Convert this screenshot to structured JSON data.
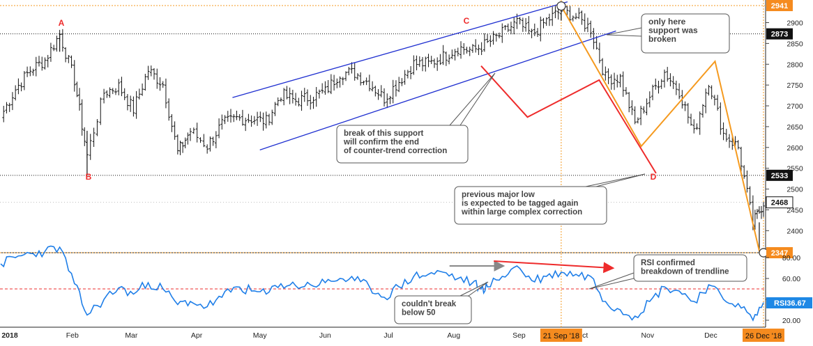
{
  "chart_data": [
    {
      "type": "ohlc",
      "name": "price",
      "ylim": [
        2340,
        2950
      ],
      "y_ticks": [
        2400,
        2450,
        2500,
        2550,
        2600,
        2650,
        2700,
        2750,
        2800,
        2850,
        2900
      ],
      "price_labels": [
        {
          "value": 2941,
          "label": "2941",
          "style": "orange"
        },
        {
          "value": 2873,
          "label": "2873",
          "style": "black"
        },
        {
          "value": 2533,
          "label": "2533",
          "style": "black"
        },
        {
          "value": 2468,
          "label": "2468",
          "style": "white"
        },
        {
          "value": 2347,
          "label": "2347",
          "style": "orange"
        }
      ],
      "points": [
        {
          "label": "A",
          "date": "2018-01-26",
          "value": 2873
        },
        {
          "label": "B",
          "date": "2018-02-08",
          "value": 2533
        },
        {
          "label": "C",
          "date": "2018-08-07",
          "value": 2873
        },
        {
          "label": "D",
          "date": "2018-11-05",
          "value": 2533
        }
      ],
      "close_series": [
        {
          "date": "2017-12-29",
          "close": 2674
        },
        {
          "date": "2018-01-05",
          "close": 2740
        },
        {
          "date": "2018-01-12",
          "close": 2786
        },
        {
          "date": "2018-01-19",
          "close": 2810
        },
        {
          "date": "2018-01-26",
          "close": 2872
        },
        {
          "date": "2018-02-02",
          "close": 2762
        },
        {
          "date": "2018-02-08",
          "close": 2581
        },
        {
          "date": "2018-02-16",
          "close": 2732
        },
        {
          "date": "2018-02-23",
          "close": 2747
        },
        {
          "date": "2018-03-02",
          "close": 2691
        },
        {
          "date": "2018-03-09",
          "close": 2786
        },
        {
          "date": "2018-03-16",
          "close": 2752
        },
        {
          "date": "2018-03-23",
          "close": 2588
        },
        {
          "date": "2018-03-29",
          "close": 2640
        },
        {
          "date": "2018-04-06",
          "close": 2604
        },
        {
          "date": "2018-04-13",
          "close": 2656
        },
        {
          "date": "2018-04-20",
          "close": 2670
        },
        {
          "date": "2018-04-27",
          "close": 2669
        },
        {
          "date": "2018-05-04",
          "close": 2663
        },
        {
          "date": "2018-05-11",
          "close": 2727
        },
        {
          "date": "2018-05-18",
          "close": 2712
        },
        {
          "date": "2018-05-25",
          "close": 2721
        },
        {
          "date": "2018-06-01",
          "close": 2734
        },
        {
          "date": "2018-06-08",
          "close": 2779
        },
        {
          "date": "2018-06-15",
          "close": 2779
        },
        {
          "date": "2018-06-22",
          "close": 2754
        },
        {
          "date": "2018-06-29",
          "close": 2718
        },
        {
          "date": "2018-07-06",
          "close": 2759
        },
        {
          "date": "2018-07-13",
          "close": 2801
        },
        {
          "date": "2018-07-20",
          "close": 2801
        },
        {
          "date": "2018-07-27",
          "close": 2818
        },
        {
          "date": "2018-08-03",
          "close": 2840
        },
        {
          "date": "2018-08-10",
          "close": 2833
        },
        {
          "date": "2018-08-17",
          "close": 2850
        },
        {
          "date": "2018-08-24",
          "close": 2874
        },
        {
          "date": "2018-08-31",
          "close": 2901
        },
        {
          "date": "2018-09-07",
          "close": 2871
        },
        {
          "date": "2018-09-14",
          "close": 2905
        },
        {
          "date": "2018-09-21",
          "close": 2929
        },
        {
          "date": "2018-09-28",
          "close": 2914
        },
        {
          "date": "2018-10-05",
          "close": 2885
        },
        {
          "date": "2018-10-12",
          "close": 2767
        },
        {
          "date": "2018-10-19",
          "close": 2767
        },
        {
          "date": "2018-10-26",
          "close": 2658
        },
        {
          "date": "2018-11-02",
          "close": 2723
        },
        {
          "date": "2018-11-09",
          "close": 2781
        },
        {
          "date": "2018-11-16",
          "close": 2736
        },
        {
          "date": "2018-11-23",
          "close": 2633
        },
        {
          "date": "2018-11-30",
          "close": 2760
        },
        {
          "date": "2018-12-07",
          "close": 2633
        },
        {
          "date": "2018-12-14",
          "close": 2600
        },
        {
          "date": "2018-12-21",
          "close": 2417
        },
        {
          "date": "2018-12-26",
          "close": 2468
        }
      ],
      "channel": {
        "upper": [
          {
            "date": "2018-04-18",
            "value": 2720
          },
          {
            "date": "2018-09-24",
            "value": 2950
          }
        ],
        "lower": [
          {
            "date": "2018-05-01",
            "value": 2594
          },
          {
            "date": "2018-10-17",
            "value": 2880
          }
        ]
      },
      "orange_path": [
        {
          "date": "2018-09-21",
          "value": 2940
        },
        {
          "date": "2018-10-29",
          "value": 2603
        },
        {
          "date": "2018-12-03",
          "value": 2807
        },
        {
          "date": "2018-12-24",
          "value": 2351
        }
      ],
      "red_path": [
        {
          "date": "2018-08-14",
          "value": 2796
        },
        {
          "date": "2018-09-05",
          "value": 2673
        },
        {
          "date": "2018-10-09",
          "value": 2762
        },
        {
          "date": "2018-11-05",
          "value": 2538
        }
      ],
      "circles": [
        {
          "date": "2018-09-21",
          "value": 2940
        },
        {
          "date": "2018-12-26",
          "value": 2347
        }
      ],
      "annotations": [
        {
          "id": "only-here",
          "text": [
            "only here",
            "support was",
            "broken"
          ]
        },
        {
          "id": "break-support",
          "text": [
            "break of this support",
            "will confirm the end",
            "of counter-trend correction"
          ]
        },
        {
          "id": "previous-low",
          "text": [
            "previous major low",
            "is expected to be tagged again",
            "within large complex correction"
          ]
        }
      ]
    },
    {
      "type": "line",
      "name": "RSI",
      "ylim": [
        12,
        92
      ],
      "y_ticks": [
        20,
        40,
        60,
        80
      ],
      "y_tick_labels": [
        "20.00",
        "40.00",
        "60.00",
        "80.00"
      ],
      "reference_line": 50,
      "badge": {
        "label": "RSI",
        "value": "36.67"
      },
      "series": [
        {
          "date": "2017-12-29",
          "value": 74
        },
        {
          "date": "2018-01-05",
          "value": 80
        },
        {
          "date": "2018-01-12",
          "value": 84
        },
        {
          "date": "2018-01-19",
          "value": 86
        },
        {
          "date": "2018-01-26",
          "value": 90
        },
        {
          "date": "2018-02-02",
          "value": 55
        },
        {
          "date": "2018-02-08",
          "value": 25
        },
        {
          "date": "2018-02-16",
          "value": 40
        },
        {
          "date": "2018-02-23",
          "value": 51
        },
        {
          "date": "2018-03-02",
          "value": 45
        },
        {
          "date": "2018-03-09",
          "value": 56
        },
        {
          "date": "2018-03-16",
          "value": 50
        },
        {
          "date": "2018-03-23",
          "value": 35
        },
        {
          "date": "2018-03-29",
          "value": 38
        },
        {
          "date": "2018-04-06",
          "value": 33
        },
        {
          "date": "2018-04-13",
          "value": 42
        },
        {
          "date": "2018-04-20",
          "value": 52
        },
        {
          "date": "2018-04-27",
          "value": 48
        },
        {
          "date": "2018-05-04",
          "value": 45
        },
        {
          "date": "2018-05-11",
          "value": 55
        },
        {
          "date": "2018-05-18",
          "value": 53
        },
        {
          "date": "2018-05-25",
          "value": 54
        },
        {
          "date": "2018-06-01",
          "value": 56
        },
        {
          "date": "2018-06-08",
          "value": 60
        },
        {
          "date": "2018-06-15",
          "value": 58
        },
        {
          "date": "2018-06-22",
          "value": 52
        },
        {
          "date": "2018-06-29",
          "value": 42
        },
        {
          "date": "2018-07-06",
          "value": 52
        },
        {
          "date": "2018-07-13",
          "value": 62
        },
        {
          "date": "2018-07-20",
          "value": 64
        },
        {
          "date": "2018-07-27",
          "value": 66
        },
        {
          "date": "2018-08-03",
          "value": 60
        },
        {
          "date": "2018-08-10",
          "value": 56
        },
        {
          "date": "2018-08-14",
          "value": 50
        },
        {
          "date": "2018-08-17",
          "value": 52
        },
        {
          "date": "2018-08-24",
          "value": 62
        },
        {
          "date": "2018-08-31",
          "value": 72
        },
        {
          "date": "2018-09-07",
          "value": 58
        },
        {
          "date": "2018-09-14",
          "value": 62
        },
        {
          "date": "2018-09-21",
          "value": 66
        },
        {
          "date": "2018-09-28",
          "value": 64
        },
        {
          "date": "2018-10-05",
          "value": 62
        },
        {
          "date": "2018-10-12",
          "value": 38
        },
        {
          "date": "2018-10-19",
          "value": 30
        },
        {
          "date": "2018-10-26",
          "value": 24
        },
        {
          "date": "2018-11-02",
          "value": 38
        },
        {
          "date": "2018-11-09",
          "value": 52
        },
        {
          "date": "2018-11-16",
          "value": 48
        },
        {
          "date": "2018-11-23",
          "value": 38
        },
        {
          "date": "2018-11-30",
          "value": 54
        },
        {
          "date": "2018-12-07",
          "value": 40
        },
        {
          "date": "2018-12-14",
          "value": 36
        },
        {
          "date": "2018-12-21",
          "value": 20
        },
        {
          "date": "2018-12-26",
          "value": 37
        }
      ],
      "arrows": [
        {
          "color": "gray",
          "from": {
            "date": "2018-07-30",
            "value": 72
          },
          "to": {
            "date": "2018-08-24",
            "value": 72
          }
        },
        {
          "color": "red",
          "from": {
            "date": "2018-08-20",
            "value": 78
          },
          "to": {
            "date": "2018-10-15",
            "value": 70
          }
        }
      ],
      "annotations": [
        {
          "id": "couldnt-break",
          "text": [
            "couldn't break",
            "below 50"
          ]
        },
        {
          "id": "rsi-confirmed",
          "text": [
            "RSI confirmed",
            "breakdown of trendline"
          ]
        }
      ]
    }
  ],
  "x_axis": {
    "labels": [
      {
        "text": "2018",
        "date": "2018-01-01"
      },
      {
        "text": "Feb",
        "date": "2018-02-01"
      },
      {
        "text": "Mar",
        "date": "2018-03-01"
      },
      {
        "text": "Apr",
        "date": "2018-04-01"
      },
      {
        "text": "May",
        "date": "2018-05-01"
      },
      {
        "text": "Jun",
        "date": "2018-06-01"
      },
      {
        "text": "Jul",
        "date": "2018-07-01"
      },
      {
        "text": "Aug",
        "date": "2018-08-01"
      },
      {
        "text": "Sep",
        "date": "2018-09-01"
      },
      {
        "text": "Oct",
        "date": "2018-10-01"
      },
      {
        "text": "Nov",
        "date": "2018-11-01"
      },
      {
        "text": "Dec",
        "date": "2018-12-01"
      }
    ],
    "highlights": [
      {
        "text": "21 Sep '18",
        "date": "2018-09-21"
      },
      {
        "text": "26 Dec '18",
        "date": "2018-12-26"
      }
    ]
  },
  "colors": {
    "candle": "#111111",
    "channel": "#1f2fd0",
    "orange": "#f59a1f",
    "red": "#ee2b2b",
    "rsi": "#1e7ee8",
    "badge_orange": "#f58b1f",
    "badge_blue": "#1e88e5"
  }
}
